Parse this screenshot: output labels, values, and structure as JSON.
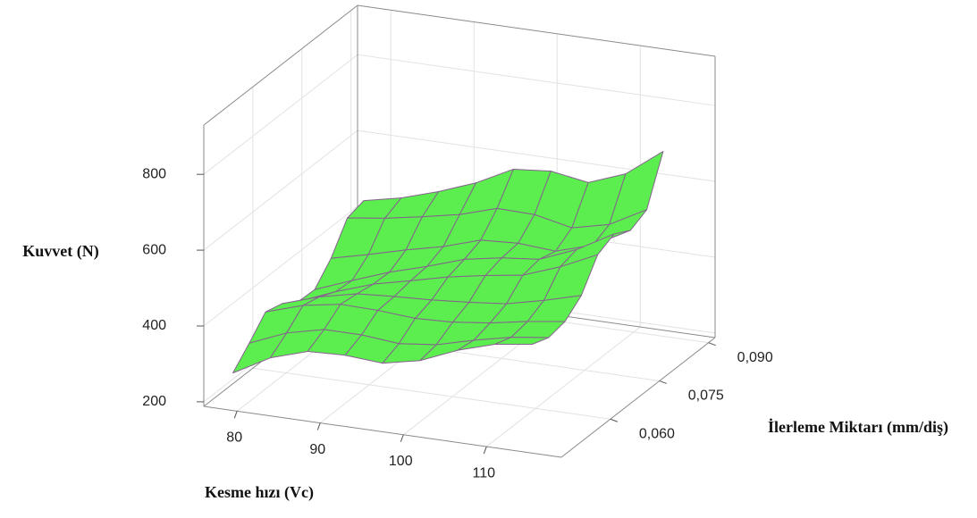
{
  "chart_data": {
    "type": "surface",
    "x_label": "Kesme hızı (Vc)",
    "y_label": "İlerleme Miktarı (mm/diş)",
    "z_label": "Kuvvet (N)",
    "x": [
      79.5,
      84,
      88.5,
      93,
      97.5,
      102,
      106.5,
      111,
      115.5
    ],
    "y": [
      0.045,
      0.05,
      0.055,
      0.06,
      0.065,
      0.07,
      0.075,
      0.08,
      0.085
    ],
    "z": [
      [
        287,
        341,
        372,
        376,
        369,
        390,
        431,
        461,
        475
      ],
      [
        332,
        373,
        396,
        396,
        387,
        398,
        424,
        446,
        459
      ],
      [
        381,
        412,
        429,
        427,
        420,
        424,
        436,
        454,
        468
      ],
      [
        369,
        401,
        423,
        430,
        435,
        443,
        453,
        476,
        503
      ],
      [
        341,
        381,
        415,
        438,
        462,
        480,
        495,
        531,
        577
      ],
      [
        339,
        377,
        413,
        442,
        475,
        493,
        503,
        543,
        598
      ],
      [
        388,
        412,
        438,
        461,
        492,
        498,
        491,
        521,
        574
      ],
      [
        461,
        474,
        492,
        512,
        542,
        540,
        519,
        542,
        595
      ],
      [
        473,
        494,
        525,
        562,
        612,
        621,
        605,
        642,
        715
      ]
    ],
    "xlim": [
      76,
      119
    ],
    "ylim": [
      0.045,
      0.092
    ],
    "zlim": [
      188,
      930
    ],
    "xticks": [
      80,
      90,
      100,
      110
    ],
    "yticks": [
      {
        "value": 0.06,
        "label": "0,060"
      },
      {
        "value": 0.075,
        "label": "0,075"
      },
      {
        "value": 0.09,
        "label": "0,090"
      }
    ],
    "zticks": [
      200,
      400,
      600,
      800
    ],
    "color": "#5ced4f",
    "edge_color": "#86628e",
    "grid": true
  }
}
